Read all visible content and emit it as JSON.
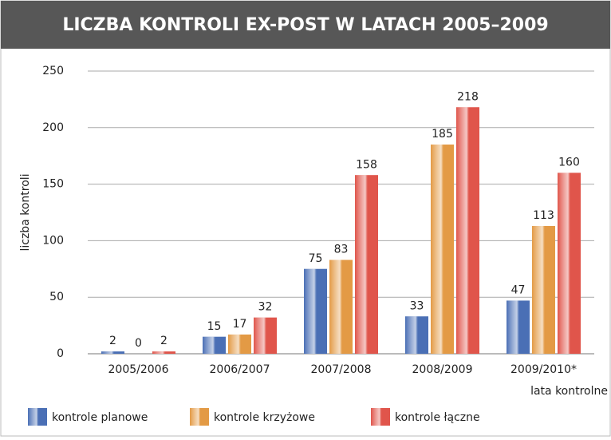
{
  "chart_data": {
    "type": "bar",
    "title": "LICZBA KONTROLI EX-POST W LATACH 2005–2009",
    "y_label": "liczba kontroli",
    "x_label": "lata kontrolne",
    "categories": [
      "2005/2006",
      "2006/2007",
      "2007/2008",
      "2008/2009",
      "2009/2010*"
    ],
    "series": [
      {
        "name": "kontrole planowe",
        "color": "#4a6fb5",
        "values": [
          2,
          15,
          75,
          33,
          47
        ]
      },
      {
        "name": "kontrole krzyżowe",
        "color": "#e39a45",
        "values": [
          0,
          17,
          83,
          185,
          113
        ]
      },
      {
        "name": "kontrole łączne",
        "color": "#e0554b",
        "values": [
          2,
          32,
          158,
          218,
          160
        ]
      }
    ],
    "ylim": [
      0,
      250
    ],
    "yticks": [
      0,
      50,
      100,
      150,
      200,
      250
    ],
    "grid": true
  }
}
